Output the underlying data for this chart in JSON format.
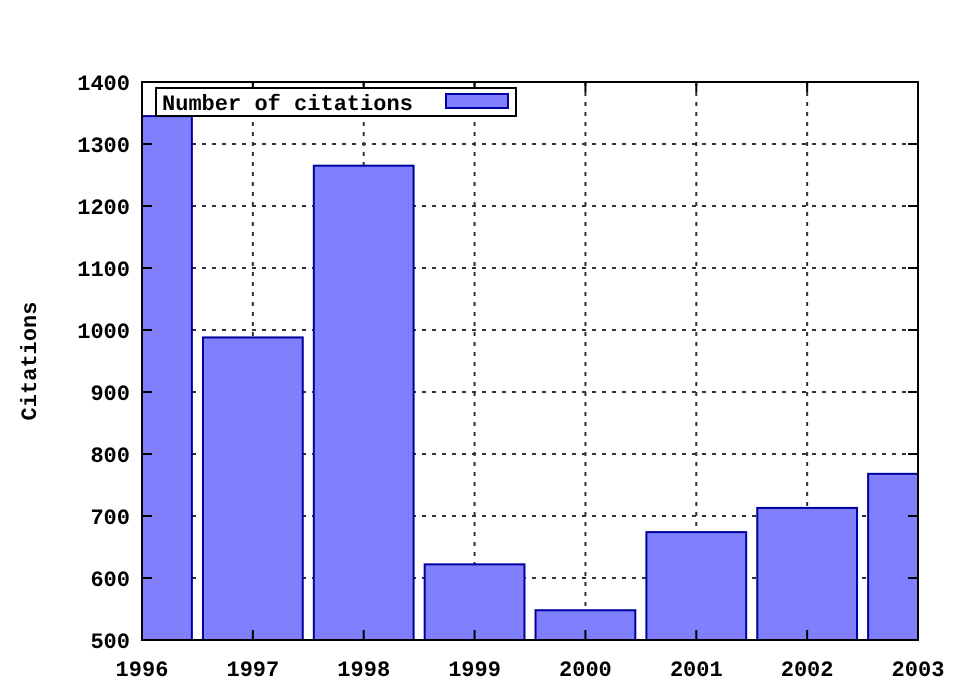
{
  "chart_data": {
    "type": "bar",
    "ylabel": "Citations",
    "x": [
      1996,
      1997,
      1998,
      1999,
      2000,
      2001,
      2002,
      2003
    ],
    "series": [
      {
        "name": "Number of citations",
        "color": "#8080ff",
        "values": [
          1345,
          988,
          1265,
          622,
          548,
          674,
          713,
          768
        ]
      }
    ],
    "xlim": [
      1996,
      2003
    ],
    "xticks": [
      1996,
      1997,
      1998,
      1999,
      2000,
      2001,
      2002,
      2003
    ],
    "ylim": [
      500,
      1400
    ],
    "yticks": [
      500,
      600,
      700,
      800,
      900,
      1000,
      1100,
      1200,
      1300,
      1400
    ],
    "grid": true,
    "legend": "top left"
  }
}
